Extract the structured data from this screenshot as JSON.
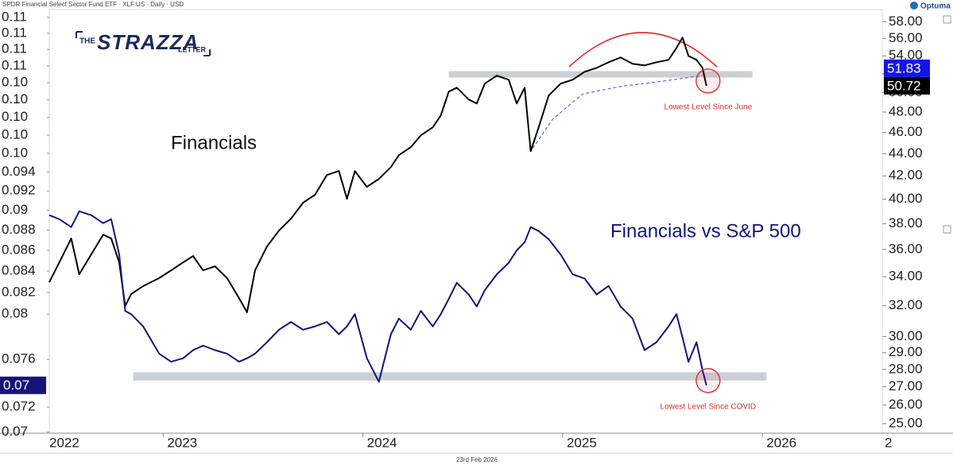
{
  "header": "SPDR Financial Select Sector Fund ETF · XLF:US · Daily · USD",
  "footer": "23rd Feb 2026",
  "branding": {
    "publisher": [
      "THE",
      "STRAZZA",
      "LETTER"
    ],
    "vendor": "Optuma"
  },
  "chart_data": {
    "type": "line",
    "x": [
      2022.43,
      2022.48,
      2022.54,
      2022.58,
      2022.64,
      2022.7,
      2022.74,
      2022.78,
      2022.81,
      2022.84,
      2022.9,
      2022.98,
      2023.04,
      2023.1,
      2023.15,
      2023.2,
      2023.26,
      2023.32,
      2023.38,
      2023.42,
      2023.46,
      2023.52,
      2023.58,
      2023.64,
      2023.7,
      2023.76,
      2023.82,
      2023.88,
      2023.92,
      2023.96,
      2024.02,
      2024.08,
      2024.14,
      2024.18,
      2024.24,
      2024.29,
      2024.35,
      2024.39,
      2024.43,
      2024.47,
      2024.53,
      2024.57,
      2024.61,
      2024.67,
      2024.73,
      2024.77,
      2024.81,
      2024.84,
      2024.88,
      2024.93,
      2024.99,
      2025.05,
      2025.11,
      2025.17,
      2025.23,
      2025.29,
      2025.35,
      2025.41,
      2025.47,
      2025.53,
      2025.57,
      2025.6,
      2025.63,
      2025.67,
      2025.7,
      2025.72
    ],
    "xlim": [
      2022.43,
      2026.6
    ],
    "xticks": [
      2022,
      2023,
      2024,
      2025,
      2026,
      {
        "value": 2027,
        "label": "2"
      }
    ],
    "series": [
      {
        "name": "Financials",
        "color": "#000000",
        "axis": "y2",
        "values": [
          33.61,
          35.04,
          36.84,
          34.18,
          35.63,
          37.14,
          36.84,
          35.04,
          31.98,
          32.79,
          33.34,
          33.9,
          34.46,
          35.04,
          35.51,
          34.46,
          34.75,
          33.9,
          32.51,
          31.56,
          34.46,
          36.23,
          37.45,
          38.4,
          39.7,
          40.37,
          42.07,
          42.43,
          40.03,
          42.43,
          41.04,
          41.73,
          42.78,
          43.86,
          44.6,
          45.72,
          46.49,
          47.67,
          50.1,
          50.52,
          49.28,
          48.87,
          50.95,
          51.8,
          51.37,
          48.87,
          50.52,
          44.23,
          46.49,
          49.69,
          50.95,
          51.37,
          52.23,
          52.66,
          53.28,
          53.82,
          53.11,
          52.93,
          53.28,
          53.55,
          54.9,
          56.1,
          54.0,
          53.55,
          52.66,
          50.72
        ]
      },
      {
        "name": "Financials vs S&P 500",
        "color": "#14147a",
        "axis": "y",
        "values": [
          0.0895,
          0.0891,
          0.0883,
          0.0899,
          0.0895,
          0.0887,
          0.0891,
          0.0856,
          0.0803,
          0.08,
          0.0789,
          0.0765,
          0.0758,
          0.0761,
          0.0768,
          0.0772,
          0.0768,
          0.0765,
          0.0758,
          0.0761,
          0.0765,
          0.0775,
          0.0786,
          0.0793,
          0.0786,
          0.0789,
          0.0793,
          0.0782,
          0.0789,
          0.08,
          0.0761,
          0.0741,
          0.0782,
          0.0796,
          0.0786,
          0.0803,
          0.0789,
          0.08,
          0.0814,
          0.0829,
          0.0818,
          0.0807,
          0.0822,
          0.0837,
          0.0848,
          0.086,
          0.0868,
          0.0883,
          0.0879,
          0.0871,
          0.0856,
          0.0837,
          0.0833,
          0.0818,
          0.0826,
          0.0807,
          0.0796,
          0.0768,
          0.0775,
          0.0789,
          0.08,
          0.0779,
          0.0758,
          0.0775,
          0.0751,
          0.0738
        ]
      },
      {
        "color": "#3a4ee0",
        "axis": "y2",
        "dashed": true,
        "x": [
          2024.85,
          2024.95,
          2025.1,
          2025.3,
          2025.5,
          2025.7
        ],
        "values": [
          44.5,
          47.28,
          49.86,
          50.69,
          51.2,
          51.83
        ]
      }
    ],
    "ylim": [
      0.0699,
      0.113
    ],
    "ylog": true,
    "yticks": [
      {
        "value": 0.112,
        "label": "0.11"
      },
      {
        "value": 0.11,
        "label": "0.11"
      },
      {
        "value": 0.108,
        "label": "0.11"
      },
      {
        "value": 0.106,
        "label": "0.11"
      },
      {
        "value": 0.104,
        "label": "0.10"
      },
      {
        "value": 0.102,
        "label": "0.10"
      },
      {
        "value": 0.1,
        "label": "0.10"
      },
      {
        "value": 0.098,
        "label": "0.10"
      },
      {
        "value": 0.096,
        "label": "0.10"
      },
      0.094,
      0.092,
      0.09,
      0.088,
      0.086,
      0.084,
      0.082,
      {
        "value": 0.08,
        "label": "0.08"
      },
      0.076,
      0.072,
      {
        "value": 0.07,
        "label": "0.07"
      }
    ],
    "y2lim": [
      24.5,
      59.5
    ],
    "y2log": true,
    "y2ticks": [
      {
        "value": 58,
        "label": "58.00"
      },
      {
        "value": 56,
        "label": "56.00"
      },
      {
        "value": 54,
        "label": "54.00"
      },
      {
        "value": 52,
        "label": "52.00"
      },
      {
        "value": 50,
        "label": "50.00"
      },
      {
        "value": 48,
        "label": "48.00"
      },
      {
        "value": 46,
        "label": "46.00"
      },
      {
        "value": 44,
        "label": "44.00"
      },
      {
        "value": 42,
        "label": "42.00"
      },
      {
        "value": 40,
        "label": "40.00"
      },
      {
        "value": 38,
        "label": "38.00"
      },
      {
        "value": 36,
        "label": "36.00"
      },
      {
        "value": 34,
        "label": "34.00"
      },
      {
        "value": 32,
        "label": "32.00"
      },
      {
        "value": 30,
        "label": "30.00"
      },
      {
        "value": 29,
        "label": "29.00"
      },
      {
        "value": 28,
        "label": "28.00"
      },
      {
        "value": 27,
        "label": "27.00"
      },
      {
        "value": 26,
        "label": "26.00"
      },
      {
        "value": 25,
        "label": "25.00"
      }
    ],
    "grid": false,
    "bands": [
      {
        "axis": "y2",
        "x": [
          2024.43,
          2025.95
        ],
        "y": [
          51.6,
          52.3
        ]
      },
      {
        "axis": "y",
        "x": [
          2022.85,
          2026.02
        ],
        "y": [
          0.0742,
          0.0749
        ]
      }
    ],
    "price_tags": [
      {
        "label": "50.72",
        "value": 50.72,
        "axis": "y2",
        "color": "#000000"
      },
      {
        "label": "51.83",
        "value": 51.83,
        "axis": "y2",
        "color": "#1515e8"
      },
      {
        "label": "0.07",
        "value": 0.0738,
        "axis": "y",
        "color": "#14147a"
      }
    ],
    "annotations": [
      {
        "text": "Lowest Level Since June",
        "series": 0
      },
      {
        "text": "Lowest Level Since COVID",
        "series": 1
      }
    ]
  }
}
